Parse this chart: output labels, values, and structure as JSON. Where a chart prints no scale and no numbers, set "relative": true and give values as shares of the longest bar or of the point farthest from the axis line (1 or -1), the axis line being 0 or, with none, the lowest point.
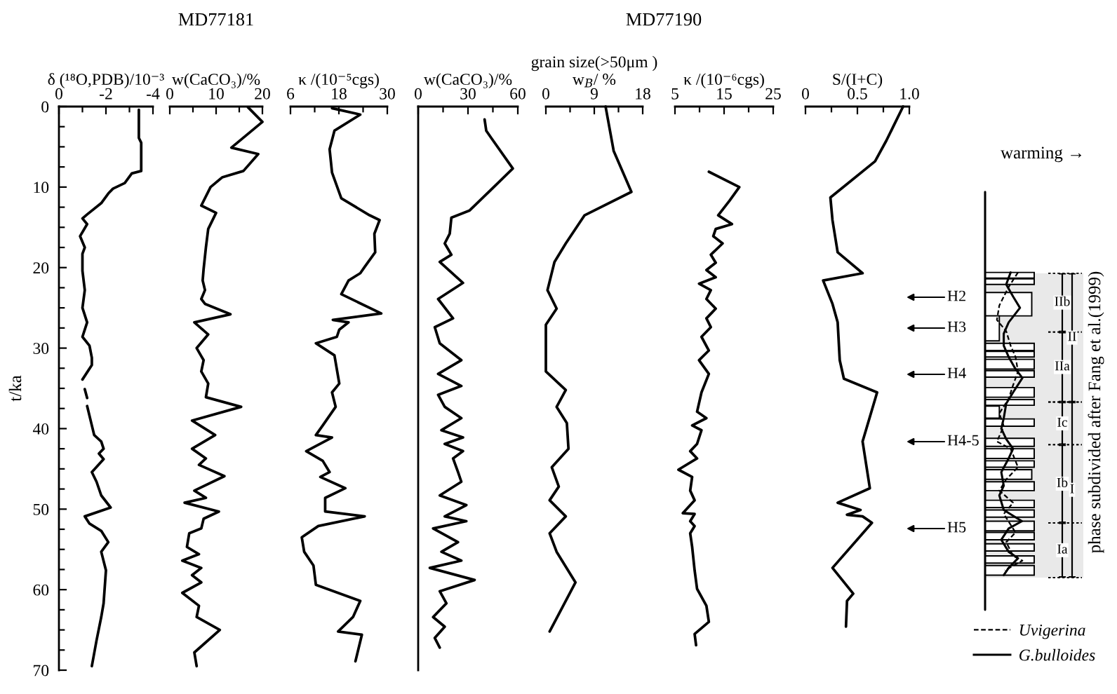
{
  "chart_data": [
    {
      "type": "line",
      "orientation": "horizontal",
      "xlabel": "δ (¹⁸O,PDB)/10⁻³",
      "ylabel": "t/ka",
      "xlim": [
        0,
        -4
      ],
      "xticks": [
        0,
        {
          "value": -1,
          "label": null
        },
        -2,
        {
          "value": -3,
          "label": null
        },
        -4
      ],
      "ylim": [
        70,
        0
      ],
      "yticks": [
        0,
        {
          "value": 2.5,
          "label": null
        },
        {
          "value": 5,
          "label": null
        },
        {
          "value": 7.5,
          "label": null
        },
        10,
        {
          "value": 12.5,
          "label": null
        },
        {
          "value": 15,
          "label": null
        },
        {
          "value": 17.5,
          "label": null
        },
        20,
        {
          "value": 22.5,
          "label": null
        },
        {
          "value": 25,
          "label": null
        },
        {
          "value": 27.5,
          "label": null
        },
        30,
        {
          "value": 32.5,
          "label": null
        },
        {
          "value": 35,
          "label": null
        },
        {
          "value": 37.5,
          "label": null
        },
        40,
        {
          "value": 42.5,
          "label": null
        },
        {
          "value": 45,
          "label": null
        },
        {
          "value": 47.5,
          "label": null
        },
        50,
        {
          "value": 52.5,
          "label": null
        },
        {
          "value": 55,
          "label": null
        },
        {
          "value": 57.5,
          "label": null
        },
        60,
        {
          "value": 62.5,
          "label": null
        },
        {
          "value": 65,
          "label": null
        },
        {
          "value": 67.5,
          "label": null
        },
        70
      ],
      "color": "#000000",
      "x": [
        0.4,
        3.9,
        4.5,
        8.0,
        8.3,
        9.5,
        10.2,
        10.8,
        12.0,
        13.4,
        13.9,
        14.6,
        16.1,
        17.5,
        18.3,
        20.4,
        22.8,
        25.0,
        26.8,
        28.6,
        29.7,
        31.2,
        32.1,
        33.9,
        34.5,
        35.1,
        36.2,
        36.7,
        37.2,
        39.6,
        40.8,
        41.6,
        42.5,
        43.1,
        43.8,
        45.4,
        46.6,
        48.3,
        49.8,
        50.9,
        51.8,
        52.7,
        54.1,
        55.3,
        57.6,
        61.7,
        63.4,
        66.3,
        69.5
      ],
      "values": [
        -3.4,
        -3.4,
        -3.5,
        -3.5,
        -3.1,
        -2.8,
        -2.3,
        -2.1,
        -1.8,
        -1.2,
        -1.0,
        -1.2,
        -0.9,
        -1.1,
        -1.0,
        -1.0,
        -1.1,
        -1.0,
        -1.2,
        -1.0,
        -1.3,
        -1.4,
        -1.4,
        -1.0,
        null,
        -1.1,
        -1.2,
        null,
        -1.2,
        -1.4,
        -1.5,
        -1.8,
        -1.9,
        -1.7,
        -1.9,
        -1.4,
        -1.6,
        -1.8,
        -2.2,
        -1.1,
        -1.3,
        -1.8,
        -2.1,
        -1.8,
        -2.0,
        -1.9,
        -1.8,
        -1.6,
        -1.4
      ]
    },
    {
      "type": "line",
      "orientation": "horizontal",
      "title": "MD77181",
      "xlabel": "w(CaCO₃)/%",
      "xlim": [
        0,
        20
      ],
      "xticks": [
        0,
        {
          "value": 5,
          "label": null
        },
        10,
        {
          "value": 15,
          "label": null
        },
        20
      ],
      "ylim": [
        70,
        0
      ],
      "tick_labels": "x",
      "color": "#000000",
      "x": [
        0.1,
        1.9,
        5.1,
        5.9,
        8.0,
        8.8,
        10.0,
        12.3,
        13.2,
        15.2,
        17.5,
        20.2,
        21.6,
        22.8,
        23.9,
        24.5,
        25.8,
        26.8,
        28.3,
        30.0,
        31.5,
        32.9,
        34.4,
        36.1,
        37.3,
        39.0,
        40.8,
        42.5,
        43.7,
        44.5,
        45.9,
        47.7,
        48.6,
        49.2,
        50.3,
        51.2,
        52.4,
        53.0,
        54.7,
        55.6,
        56.4,
        57.3,
        58.2,
        59.1,
        60.4,
        62.0,
        63.4,
        65.0,
        67.8,
        69.5
      ],
      "values": [
        16.9,
        20.0,
        13.3,
        19.1,
        15.9,
        11.3,
        8.8,
        6.8,
        10.0,
        8.3,
        7.8,
        7.3,
        7.1,
        7.6,
        6.8,
        7.6,
        13.1,
        5.3,
        8.3,
        5.8,
        7.3,
        6.8,
        8.3,
        7.8,
        15.4,
        4.8,
        9.8,
        4.8,
        7.8,
        6.3,
        11.8,
        5.3,
        7.8,
        3.2,
        10.6,
        7.3,
        6.8,
        4.2,
        3.7,
        6.3,
        2.7,
        6.8,
        4.8,
        6.8,
        2.7,
        6.3,
        5.8,
        10.8,
        5.3,
        5.8
      ]
    },
    {
      "type": "line",
      "orientation": "horizontal",
      "xlabel": "κ /(10⁻⁵cgs)",
      "xlim": [
        6,
        30
      ],
      "xticks": [
        6,
        {
          "value": 12,
          "label": null
        },
        18,
        {
          "value": 24,
          "label": null
        },
        30
      ],
      "ylim": [
        70,
        0
      ],
      "tick_labels": "x",
      "color": "#000000",
      "x": [
        0.2,
        1.0,
        3.0,
        5.3,
        8.2,
        11.4,
        13.5,
        14.1,
        15.8,
        18.1,
        19.9,
        20.7,
        21.6,
        23.3,
        25.7,
        26.5,
        26.8,
        27.7,
        28.6,
        29.4,
        30.9,
        34.4,
        35.5,
        37.3,
        39.6,
        40.8,
        41.1,
        42.8,
        44.0,
        45.4,
        46.0,
        47.4,
        48.6,
        50.3,
        50.9,
        52.1,
        53.5,
        55.3,
        57.0,
        59.4,
        61.4,
        63.4,
        65.2,
        65.6,
        68.9
      ],
      "values": [
        16.3,
        23.3,
        16.9,
        15.7,
        16.3,
        18.6,
        25.6,
        28.1,
        26.8,
        27.0,
        24.4,
        23.3,
        20.4,
        18.6,
        28.5,
        16.5,
        20.4,
        18.1,
        17.5,
        12.3,
        16.9,
        18.1,
        16.3,
        17.2,
        14.0,
        12.3,
        16.3,
        9.9,
        14.0,
        15.7,
        13.4,
        19.6,
        14.6,
        14.6,
        24.4,
        12.9,
        8.8,
        9.4,
        11.7,
        12.3,
        23.3,
        21.5,
        17.8,
        23.7,
        22.1
      ]
    },
    {
      "type": "line",
      "orientation": "horizontal",
      "xlabel": "w(CaCO₃)/%",
      "xlim": [
        0,
        60
      ],
      "xticks": [
        0,
        {
          "value": 15,
          "label": null
        },
        30,
        {
          "value": 45,
          "label": null
        },
        60
      ],
      "ylim": [
        70,
        0
      ],
      "tick_labels": "x",
      "annotations": [
        "MD77190"
      ],
      "color": "#000000",
      "x": [
        1.6,
        3.0,
        3.9,
        7.7,
        10.3,
        12.9,
        13.8,
        15.8,
        17.0,
        18.4,
        19.3,
        21.9,
        23.9,
        26.3,
        27.4,
        29.4,
        31.5,
        33.2,
        34.7,
        35.8,
        37.3,
        38.7,
        40.2,
        41.1,
        41.9,
        42.8,
        43.7,
        45.4,
        46.6,
        48.3,
        49.5,
        50.9,
        51.5,
        52.4,
        54.1,
        55.3,
        56.4,
        57.3,
        58.8,
        60.2,
        61.7,
        63.4,
        64.6,
        66.0,
        67.2
      ],
      "values": [
        40,
        41,
        44,
        57,
        44,
        31,
        20,
        19,
        16,
        20,
        13,
        27,
        12,
        21,
        10,
        13,
        26,
        12,
        26,
        12,
        16,
        26,
        14,
        27,
        16,
        27,
        21,
        24,
        26,
        13,
        29,
        16,
        29,
        9,
        24,
        14,
        26,
        7,
        34,
        13,
        17,
        9,
        16,
        10,
        13
      ]
    },
    {
      "type": "line",
      "orientation": "horizontal",
      "xlabel": "grain size(>50μm )\nw$_{B}$/ %",
      "xlim": [
        0,
        18
      ],
      "xticks": [
        0,
        {
          "value": 4.5,
          "label": null
        },
        9,
        {
          "value": 13.5,
          "label": null
        },
        18
      ],
      "ylim": [
        70,
        0
      ],
      "tick_labels": "x",
      "color": "#000000",
      "x": [
        0,
        5.5,
        10.6,
        13.5,
        17.0,
        19.3,
        22.8,
        25.1,
        27.1,
        32.9,
        35.2,
        37.3,
        39.3,
        42.5,
        44.8,
        47.2,
        48.9,
        50.9,
        53.0,
        55.3,
        59.1,
        65.2
      ],
      "values": [
        11.1,
        12.6,
        15.9,
        7.2,
        3.7,
        1.6,
        0.3,
        2.0,
        0.0,
        0.0,
        3.7,
        2.0,
        3.9,
        4.2,
        1.1,
        2.4,
        0.7,
        3.7,
        0.7,
        2.0,
        5.5,
        0.7
      ]
    },
    {
      "type": "line",
      "orientation": "horizontal",
      "xlabel": "κ /(10⁻⁶cgs)",
      "xlim": [
        5,
        25
      ],
      "xticks": [
        5,
        {
          "value": 10,
          "label": null
        },
        15,
        {
          "value": 20,
          "label": null
        },
        25
      ],
      "ylim": [
        70,
        0
      ],
      "tick_labels": "x",
      "color": "#000000",
      "x": [
        8.1,
        10.0,
        11.7,
        13.5,
        14.6,
        15.2,
        16.1,
        17.0,
        18.4,
        19.4,
        20.3,
        21.2,
        22.0,
        22.8,
        23.9,
        25.1,
        26.3,
        27.4,
        28.6,
        30.3,
        31.5,
        33.2,
        35.5,
        37.9,
        38.7,
        39.6,
        40.2,
        41.9,
        42.8,
        43.7,
        45.1,
        46.0,
        47.7,
        48.9,
        50.5,
        50.6,
        51.5,
        52.1,
        53.0,
        54.7,
        57.6,
        59.9,
        62.0,
        64.0,
        65.5,
        66.9
      ],
      "values": [
        11.9,
        18.1,
        16.1,
        13.8,
        16.6,
        13.3,
        12.8,
        14.7,
        12.3,
        13.3,
        11.4,
        13.3,
        9.9,
        12.3,
        11.4,
        13.3,
        11.4,
        12.3,
        10.4,
        11.9,
        9.9,
        11.9,
        10.4,
        9.5,
        11.4,
        8.5,
        10.4,
        9.5,
        8.1,
        9.5,
        5.7,
        8.5,
        8.1,
        9.0,
        6.6,
        9.0,
        8.1,
        9.0,
        8.1,
        8.5,
        9.0,
        9.5,
        11.4,
        11.9,
        9.0,
        9.3
      ]
    },
    {
      "type": "line",
      "orientation": "horizontal",
      "xlabel": "S/(I+C)",
      "xlim": [
        0,
        1
      ],
      "xticks": [
        0,
        {
          "value": 0.25,
          "label": null
        },
        0.5,
        {
          "value": 0.75,
          "label": null
        },
        {
          "value": 1,
          "label": "1.0"
        }
      ],
      "ylim": [
        70,
        0
      ],
      "tick_labels": "x",
      "color": "#000000",
      "x": [
        0,
        4.2,
        6.8,
        11.3,
        14.1,
        18.1,
        20.7,
        21.6,
        24.5,
        26.8,
        31.5,
        33.8,
        35.5,
        41.6,
        47.4,
        49.2,
        50.1,
        50.7,
        50.9,
        51.7,
        57.3,
        60.5,
        61.4,
        64.6
      ],
      "values": [
        0.94,
        0.78,
        0.67,
        0.24,
        0.26,
        0.31,
        0.55,
        0.17,
        0.26,
        0.31,
        0.33,
        0.37,
        0.69,
        0.55,
        0.62,
        0.31,
        0.53,
        0.4,
        0.55,
        0.64,
        0.26,
        0.46,
        0.4,
        0.39
      ]
    },
    {
      "type": "line",
      "orientation": "horizontal",
      "relative": true,
      "xlabel": "warming →",
      "ylim": [
        70,
        0
      ],
      "tick_labels": false,
      "legend": "bottom",
      "series": [
        {
          "name": "Uvigerina",
          "color": "#000000",
          "line_style": "dashed",
          "x": [
            20.6,
            22.4,
            24.7,
            26.5,
            27.9,
            29.7,
            31.1,
            32.9,
            34.6,
            36.3,
            38.1,
            39.7,
            41.6,
            42.5,
            44.8,
            46.3,
            47.7,
            49.2,
            50.6,
            52.9,
            54.1,
            55.8,
            56.4,
            57.6
          ],
          "values": [
            0.67,
            0.48,
            0.29,
            0.24,
            0.43,
            0.52,
            0.62,
            0.67,
            0.57,
            0.48,
            0.29,
            0.38,
            0.24,
            0.52,
            0.67,
            0.43,
            0.29,
            0.57,
            0.38,
            0.62,
            0.43,
            0.57,
            0.76,
            0.4
          ]
        },
        {
          "name": "G.bulloides",
          "color": "#000000",
          "line_style": "solid",
          "x": [
            20.6,
            22.1,
            23.6,
            25.0,
            26.8,
            28.2,
            29.7,
            31.1,
            32.6,
            33.7,
            35.5,
            36.9,
            38.7,
            40.0,
            41.3,
            42.5,
            43.7,
            45.4,
            47.1,
            48.3,
            50.1,
            51.5,
            52.4,
            53.8,
            55.3,
            56.1,
            57.3,
            58.2
          ],
          "values": [
            0.52,
            0.43,
            0.57,
            0.71,
            0.48,
            0.38,
            0.38,
            0.48,
            0.62,
            0.76,
            0.57,
            0.43,
            0.38,
            0.33,
            0.43,
            0.57,
            0.48,
            0.33,
            0.38,
            0.29,
            0.38,
            0.75,
            0.48,
            0.33,
            0.48,
            0.67,
            0.48,
            0.38
          ]
        },
        {
          "type": "line",
          "color": "#000000",
          "x": [
            10.6,
            62.5
          ],
          "values": [
            0,
            0
          ]
        },
        {
          "type": "histogram",
          "color": "#000000",
          "bins": [
            20.6,
            21.3,
            21.4,
            22.1,
            23.1,
            26.0,
            29.1,
            29.4,
            30.3,
            30.4,
            31.1,
            31.4,
            32.6,
            32.8,
            33.6,
            34.9,
            36.1,
            36.4,
            37.1,
            37.2,
            38.7,
            38.8,
            39.7,
            41.2,
            42.2,
            42.5,
            43.7,
            44.0,
            44.8,
            45.1,
            46.3,
            46.6,
            47.7,
            48.9,
            49.8,
            50.1,
            51.0,
            51.5,
            52.7,
            52.9,
            53.8,
            54.3,
            55.2,
            55.8,
            56.7,
            57.0,
            58.2
          ],
          "values": [
            1.0,
            null,
            1.0,
            null,
            0.95,
            0.29,
            null,
            1.0,
            null,
            1.0,
            null,
            1.0,
            null,
            1.0,
            null,
            1.0,
            null,
            1.0,
            null,
            0.29,
            null,
            1.0,
            null,
            1.0,
            null,
            1.0,
            null,
            1.0,
            null,
            0.95,
            null,
            1.0,
            null,
            1.0,
            null,
            1.0,
            null,
            1.0,
            null,
            1.0,
            null,
            1.0,
            null,
            1.0,
            null,
            1.0
          ]
        }
      ],
      "bands": [
        {
          "axis": "y",
          "from": 20.7,
          "to": 28.0,
          "label": "IIb"
        },
        {
          "axis": "y",
          "from": 28.0,
          "to": 36.7,
          "label": "IIa"
        },
        {
          "axis": "y",
          "from": 36.7,
          "to": 42.0,
          "label": "Ic"
        },
        {
          "axis": "y",
          "from": 42.0,
          "to": 51.7,
          "label": "Ib"
        },
        {
          "axis": "y",
          "from": 51.7,
          "to": 58.5,
          "label": "Ia"
        },
        {
          "axis": "y",
          "from": 20.7,
          "to": 36.7,
          "label": "II"
        },
        {
          "axis": "y",
          "from": 36.7,
          "to": 58.5,
          "label": "I"
        }
      ],
      "annotations": [
        "H2",
        "H3",
        "H4",
        "H4-5",
        "H5",
        "phase subdivided after Fang et al.(1999)"
      ]
    }
  ]
}
